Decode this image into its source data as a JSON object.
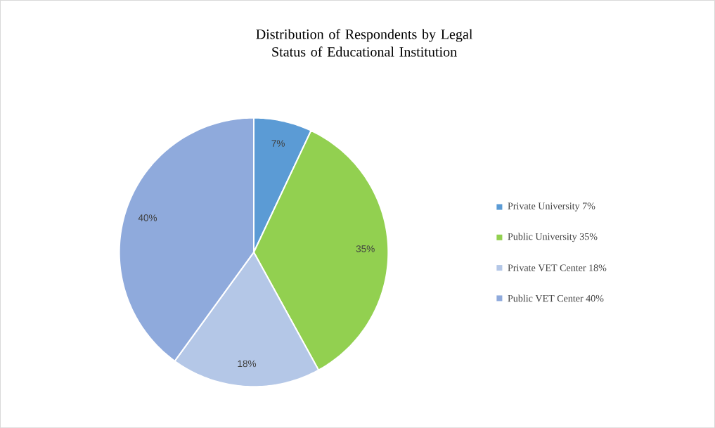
{
  "chart_data": {
    "type": "pie",
    "title": "Distribution of Respondents by Legal  Status of Educational Institution",
    "categories": [
      "Private University 7%",
      "Public University 35%",
      "Private VET Center 18%",
      "Public VET Center 40%"
    ],
    "values": [
      7,
      35,
      18,
      40
    ],
    "colors": [
      "#5b9bd5",
      "#92d050",
      "#b4c7e7",
      "#8faadc"
    ],
    "value_labels": [
      "7%",
      "35%",
      "18%",
      "40%"
    ],
    "legend": "right"
  }
}
